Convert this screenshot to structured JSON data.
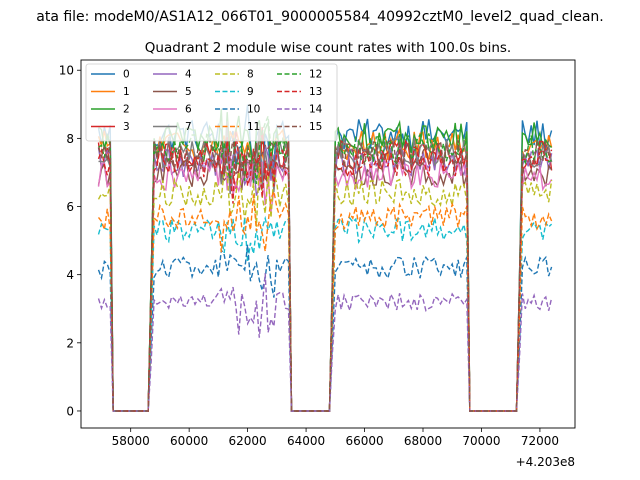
{
  "chart_data": {
    "type": "line",
    "suptitle": "ata file: modeM0/AS1A12_066T01_9000005584_40992cztM0_level2_quad_clean.",
    "title": "Quadrant 2 module wise count rates with 100.0s bins.",
    "xlabel": "",
    "ylabel": "",
    "x_offset_label": "+4.203e8",
    "xlim": [
      56300,
      73200
    ],
    "ylim": [
      -0.5,
      10.3
    ],
    "x_ticks": [
      58000,
      60000,
      62000,
      64000,
      66000,
      68000,
      70000,
      72000
    ],
    "x_tick_labels": [
      "58000",
      "60000",
      "62000",
      "64000",
      "66000",
      "68000",
      "70000",
      "72000"
    ],
    "y_ticks": [
      0,
      2,
      4,
      6,
      8,
      10
    ],
    "y_tick_labels": [
      "0",
      "2",
      "4",
      "6",
      "8",
      "10"
    ],
    "legend_position": "top-left",
    "legend_columns": 4,
    "time_segments": [
      {
        "start": 56900,
        "end": 57400,
        "state": "active"
      },
      {
        "start": 57400,
        "end": 58700,
        "state": "zero"
      },
      {
        "start": 58700,
        "end": 63500,
        "state": "active"
      },
      {
        "start": 63500,
        "end": 64900,
        "state": "zero"
      },
      {
        "start": 64900,
        "end": 69600,
        "state": "active"
      },
      {
        "start": 69600,
        "end": 71300,
        "state": "zero"
      },
      {
        "start": 71300,
        "end": 72400,
        "state": "active"
      }
    ],
    "series": [
      {
        "name": "0",
        "color": "#1f77b4",
        "dash": "solid",
        "mean_rate": 8.1
      },
      {
        "name": "1",
        "color": "#ff7f0e",
        "dash": "solid",
        "mean_rate": 7.8
      },
      {
        "name": "2",
        "color": "#2ca02c",
        "dash": "solid",
        "mean_rate": 8.0
      },
      {
        "name": "3",
        "color": "#d62728",
        "dash": "solid",
        "mean_rate": 7.5
      },
      {
        "name": "4",
        "color": "#9467bd",
        "dash": "solid",
        "mean_rate": 7.3
      },
      {
        "name": "5",
        "color": "#8c564b",
        "dash": "solid",
        "mean_rate": 7.0
      },
      {
        "name": "6",
        "color": "#e377c2",
        "dash": "solid",
        "mean_rate": 6.9
      },
      {
        "name": "7",
        "color": "#7f7f7f",
        "dash": "solid",
        "mean_rate": 7.6
      },
      {
        "name": "8",
        "color": "#bcbd22",
        "dash": "dashed",
        "mean_rate": 6.4
      },
      {
        "name": "9",
        "color": "#17becf",
        "dash": "dashed",
        "mean_rate": 5.3
      },
      {
        "name": "10",
        "color": "#1f77b4",
        "dash": "dashed",
        "mean_rate": 4.2
      },
      {
        "name": "11",
        "color": "#ff7f0e",
        "dash": "dashed",
        "mean_rate": 5.7
      },
      {
        "name": "12",
        "color": "#2ca02c",
        "dash": "dashed",
        "mean_rate": 7.7
      },
      {
        "name": "13",
        "color": "#d62728",
        "dash": "dashed",
        "mean_rate": 7.3
      },
      {
        "name": "14",
        "color": "#9467bd",
        "dash": "dashed",
        "mean_rate": 3.2
      },
      {
        "name": "15",
        "color": "#8c564b",
        "dash": "dashed",
        "mean_rate": 7.5
      }
    ]
  }
}
